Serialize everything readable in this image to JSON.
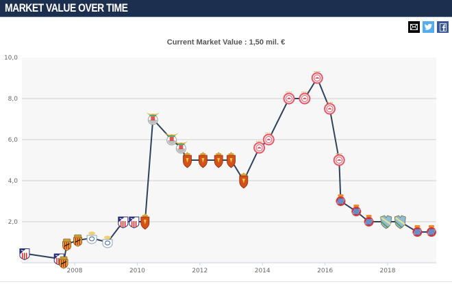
{
  "header": {
    "title": "MARKET VALUE OVER TIME"
  },
  "share": {
    "email": {
      "icon": "envelope-icon",
      "label": "Email"
    },
    "twitter": {
      "icon": "twitter-bird-icon",
      "label": "Twitter"
    },
    "facebook": {
      "icon": "facebook-f-icon",
      "label": "Facebook"
    }
  },
  "colors": {
    "header_bg": "#1d2f4f",
    "line": "#2e3f5c",
    "plot_bg": "#f7f7f7",
    "grid": "#cfcfcf"
  },
  "chart_data": {
    "type": "line",
    "title": "Current Market Value : 1,50 mil. €",
    "xlabel": "",
    "ylabel": "",
    "ylim": [
      0,
      10
    ],
    "xlim": [
      2006.3,
      2019.5
    ],
    "y_ticks": [
      "2,0",
      "4,0",
      "6,0",
      "8,0",
      "10,0"
    ],
    "y_tick_values": [
      2,
      4,
      6,
      8,
      10
    ],
    "x_ticks": [
      "2008",
      "2010",
      "2012",
      "2014",
      "2016",
      "2018"
    ],
    "x_tick_values": [
      2008,
      2010,
      2012,
      2014,
      2016,
      2018
    ],
    "grid": true,
    "legend": "none",
    "series": [
      {
        "name": "Market value (mil. €)",
        "points": [
          {
            "x": 2006.4,
            "y": 0.45,
            "club": "Atletico Madrid"
          },
          {
            "x": 2007.5,
            "y": 0.2,
            "club": "Atletico Madrid"
          },
          {
            "x": 2007.65,
            "y": 0.03,
            "club": "RCD Mallorca"
          },
          {
            "x": 2007.75,
            "y": 0.9,
            "club": "RCD Mallorca"
          },
          {
            "x": 2008.1,
            "y": 1.1,
            "club": "RCD Mallorca"
          },
          {
            "x": 2008.55,
            "y": 1.2,
            "club": "Recreativo Huelva"
          },
          {
            "x": 2009.05,
            "y": 1.0,
            "club": "Recreativo Huelva"
          },
          {
            "x": 2009.55,
            "y": 2.0,
            "club": "Atletico Madrid"
          },
          {
            "x": 2009.9,
            "y": 2.0,
            "club": "Atletico Madrid"
          },
          {
            "x": 2010.25,
            "y": 2.0,
            "club": "Real Zaragoza"
          },
          {
            "x": 2010.5,
            "y": 7.0,
            "club": "Benfica"
          },
          {
            "x": 2011.1,
            "y": 6.0,
            "club": "Benfica"
          },
          {
            "x": 2011.4,
            "y": 5.6,
            "club": "Benfica"
          },
          {
            "x": 2011.6,
            "y": 5.0,
            "club": "Real Zaragoza"
          },
          {
            "x": 2012.1,
            "y": 5.0,
            "club": "Real Zaragoza"
          },
          {
            "x": 2012.6,
            "y": 5.0,
            "club": "Real Zaragoza"
          },
          {
            "x": 2013.0,
            "y": 5.0,
            "club": "Real Zaragoza"
          },
          {
            "x": 2013.4,
            "y": 4.0,
            "club": "Real Zaragoza"
          },
          {
            "x": 2013.9,
            "y": 5.6,
            "club": "Olympiacos"
          },
          {
            "x": 2014.2,
            "y": 6.0,
            "club": "Olympiacos"
          },
          {
            "x": 2014.85,
            "y": 8.0,
            "club": "Olympiacos"
          },
          {
            "x": 2015.35,
            "y": 8.0,
            "club": "Olympiacos"
          },
          {
            "x": 2015.75,
            "y": 9.0,
            "club": "Olympiacos"
          },
          {
            "x": 2016.15,
            "y": 7.5,
            "club": "Olympiacos"
          },
          {
            "x": 2016.45,
            "y": 5.0,
            "club": "Olympiacos"
          },
          {
            "x": 2016.5,
            "y": 3.0,
            "club": "RCD Espanyol"
          },
          {
            "x": 2017.0,
            "y": 2.5,
            "club": "RCD Espanyol"
          },
          {
            "x": 2017.4,
            "y": 2.0,
            "club": "RCD Espanyol"
          },
          {
            "x": 2017.95,
            "y": 2.0,
            "club": "Malaga CF"
          },
          {
            "x": 2018.4,
            "y": 2.0,
            "club": "Malaga CF"
          },
          {
            "x": 2018.95,
            "y": 1.5,
            "club": "RCD Espanyol"
          },
          {
            "x": 2019.4,
            "y": 1.5,
            "club": "RCD Espanyol"
          }
        ]
      }
    ]
  }
}
